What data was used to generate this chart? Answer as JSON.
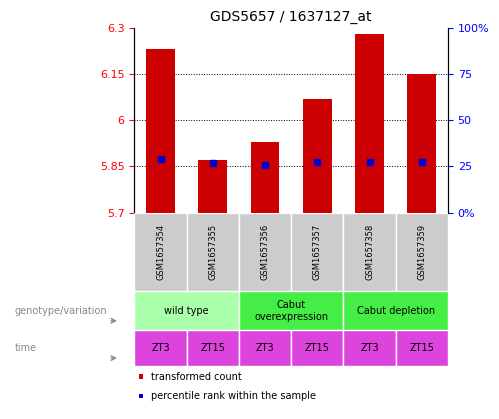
{
  "title": "GDS5657 / 1637127_at",
  "samples": [
    "GSM1657354",
    "GSM1657355",
    "GSM1657356",
    "GSM1657357",
    "GSM1657358",
    "GSM1657359"
  ],
  "bar_values": [
    6.23,
    5.87,
    5.93,
    6.07,
    6.28,
    6.15
  ],
  "percentile_values": [
    5.875,
    5.86,
    5.855,
    5.865,
    5.865,
    5.865
  ],
  "ylim_left": [
    5.7,
    6.3
  ],
  "yticks_left": [
    5.7,
    5.85,
    6.0,
    6.15,
    6.3
  ],
  "ytick_labels_left": [
    "5.7",
    "5.85",
    "6",
    "6.15",
    "6.3"
  ],
  "yticks_right": [
    0,
    25,
    50,
    75,
    100
  ],
  "ytick_labels_right": [
    "0%",
    "25",
    "50",
    "75",
    "100%"
  ],
  "ylim_right": [
    0,
    100
  ],
  "bar_color": "#cc0000",
  "percentile_color": "#0000cc",
  "bar_bottom": 5.7,
  "gridlines_at": [
    5.85,
    6.0,
    6.15
  ],
  "geno_groups": [
    {
      "label": "wild type",
      "start": 0,
      "end": 2,
      "color": "#aaffaa"
    },
    {
      "label": "Cabut\noverexpression",
      "start": 2,
      "end": 4,
      "color": "#44ee44"
    },
    {
      "label": "Cabut depletion",
      "start": 4,
      "end": 6,
      "color": "#44ee44"
    }
  ],
  "time_labels": [
    "ZT3",
    "ZT15",
    "ZT3",
    "ZT15",
    "ZT3",
    "ZT15"
  ],
  "time_color": "#dd44dd",
  "time_alt_color": "#ee88ee",
  "sample_bg_color": "#cccccc",
  "legend_items": [
    {
      "label": "transformed count",
      "color": "#cc0000"
    },
    {
      "label": "percentile rank within the sample",
      "color": "#0000cc"
    }
  ],
  "left_label_color": "#888888",
  "arrow_color": "#888888"
}
